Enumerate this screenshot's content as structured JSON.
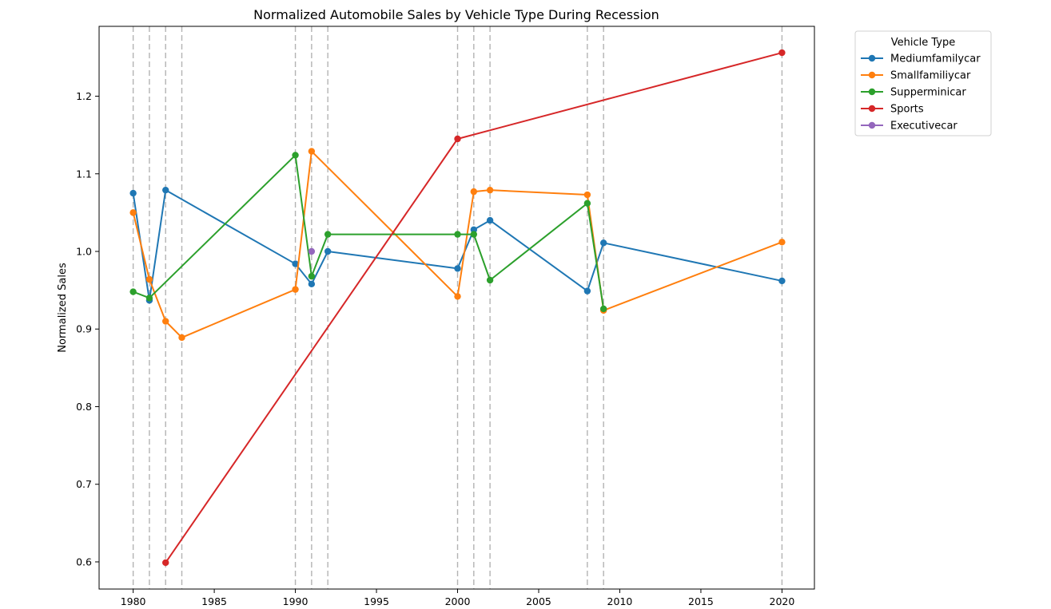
{
  "chart_data": {
    "type": "line",
    "title": "Normalized Automobile Sales by Vehicle Type During Recession",
    "xlabel": "",
    "ylabel": "Normalized Sales",
    "xlim": [
      1977.9,
      2022
    ],
    "ylim": [
      0.565,
      1.29
    ],
    "x_ticks": [
      1980,
      1985,
      1990,
      1995,
      2000,
      2005,
      2010,
      2015,
      2020
    ],
    "y_ticks": [
      0.6,
      0.7,
      0.8,
      0.9,
      1.0,
      1.1,
      1.2
    ],
    "y_tick_labels": [
      "0.6",
      "0.7",
      "0.8",
      "0.9",
      "1.0",
      "1.1",
      "1.2"
    ],
    "recession_years": [
      1980,
      1981,
      1982,
      1983,
      1990,
      1991,
      1992,
      2000,
      2001,
      2002,
      2008,
      2009,
      2020
    ],
    "grid": false,
    "legend": {
      "title": "Vehicle Type",
      "placement": "outside-top-right"
    },
    "series": [
      {
        "name": "Mediumfamilycar",
        "color": "#1f77b4",
        "x": [
          1980,
          1981,
          1982,
          1990,
          1991,
          1992,
          2000,
          2001,
          2002,
          2008,
          2009,
          2020
        ],
        "y": [
          1.075,
          0.937,
          1.079,
          0.984,
          0.958,
          1.0,
          0.978,
          1.028,
          1.04,
          0.949,
          1.011,
          0.962
        ]
      },
      {
        "name": "Smallfamiliycar",
        "color": "#ff7f0e",
        "x": [
          1980,
          1981,
          1982,
          1983,
          1990,
          1991,
          2000,
          2001,
          2002,
          2008,
          2009,
          2020
        ],
        "y": [
          1.05,
          0.964,
          0.91,
          0.889,
          0.951,
          1.129,
          0.942,
          1.077,
          1.079,
          1.073,
          0.924,
          1.012
        ]
      },
      {
        "name": "Supperminicar",
        "color": "#2ca02c",
        "x": [
          1980,
          1981,
          1990,
          1991,
          1992,
          2000,
          2001,
          2002,
          2008,
          2009
        ],
        "y": [
          0.948,
          0.94,
          1.124,
          0.968,
          1.022,
          1.022,
          1.022,
          0.963,
          1.062,
          0.926
        ]
      },
      {
        "name": "Sports",
        "color": "#d62728",
        "x": [
          1982,
          2000,
          2020
        ],
        "y": [
          0.599,
          1.145,
          1.256
        ]
      },
      {
        "name": "Executivecar",
        "color": "#9467bd",
        "x": [
          1991
        ],
        "y": [
          1.0
        ]
      }
    ]
  }
}
